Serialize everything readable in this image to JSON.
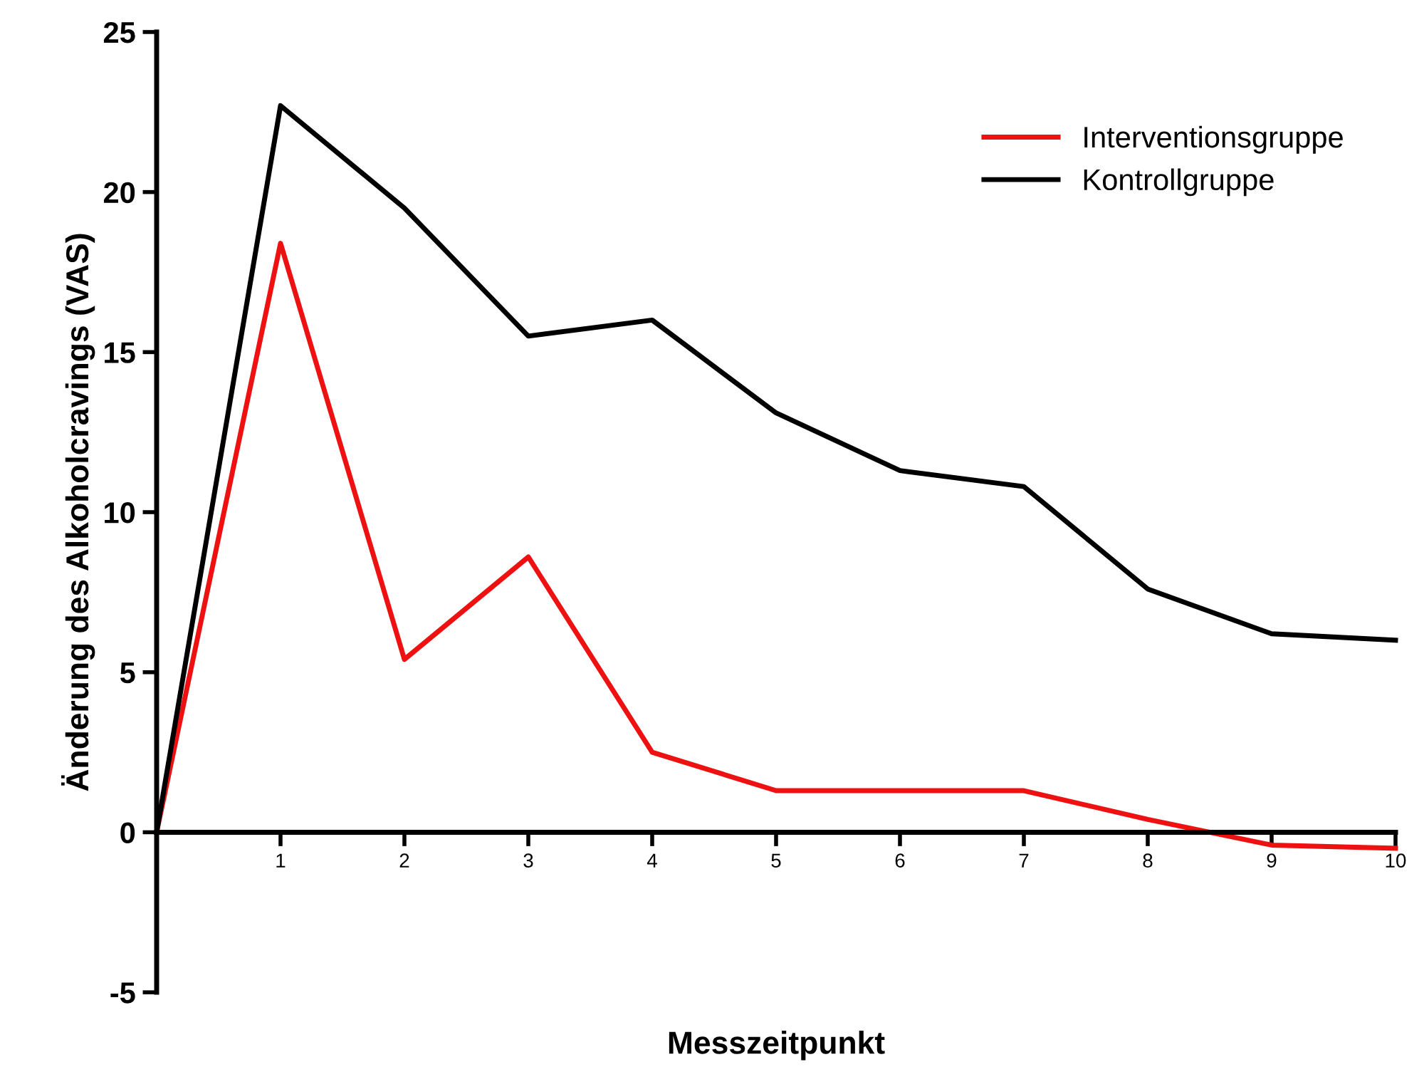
{
  "chart_data": {
    "type": "line",
    "xlabel": "Messzeitpunkt",
    "ylabel": "Änderung des Alkoholcravings (VAS)",
    "x": [
      0,
      1,
      2,
      3,
      4,
      5,
      6,
      7,
      8,
      9,
      10
    ],
    "series": [
      {
        "name": "Interventionsgruppe",
        "color": "#ee1111",
        "values": [
          0,
          18.4,
          5.4,
          8.6,
          2.5,
          1.3,
          1.3,
          1.3,
          0.4,
          -0.4,
          -0.5
        ]
      },
      {
        "name": "Kontrollgruppe",
        "color": "#000000",
        "values": [
          0,
          22.7,
          19.5,
          15.5,
          16.0,
          13.1,
          11.3,
          10.8,
          7.6,
          6.2,
          6.0
        ]
      }
    ],
    "xlim": [
      0,
      10
    ],
    "xticks": [
      1,
      2,
      3,
      4,
      5,
      6,
      7,
      8,
      9,
      10
    ],
    "ylim": [
      -5,
      25
    ],
    "yticks": [
      -5,
      0,
      5,
      10,
      15,
      20,
      25
    ],
    "grid": false,
    "legend": "top right",
    "marker": "none",
    "line_style": "solid"
  }
}
